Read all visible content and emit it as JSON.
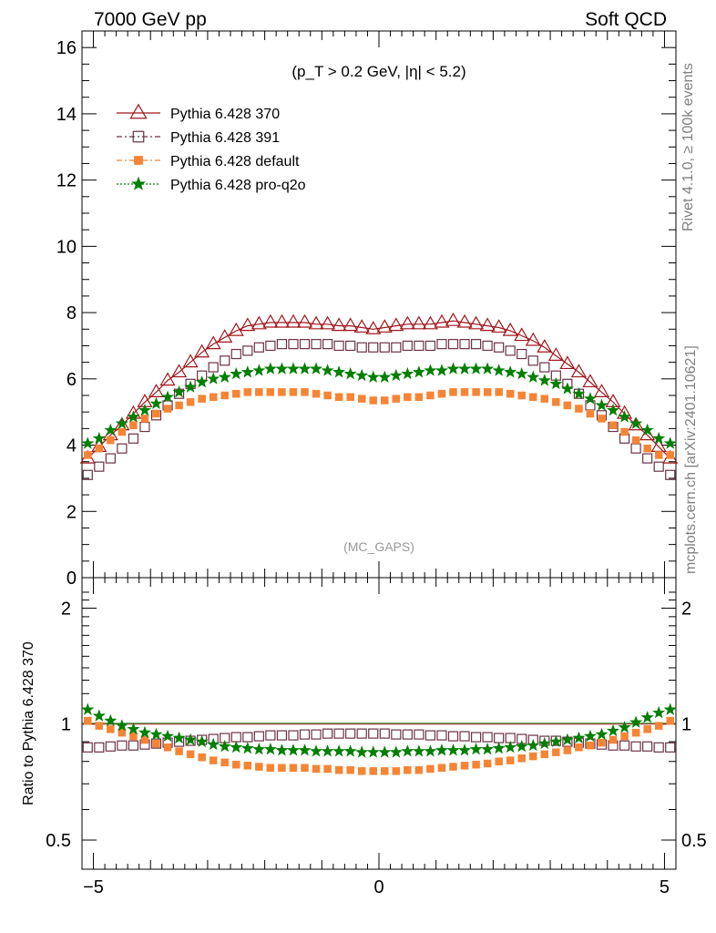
{
  "header": {
    "left_title": "7000 GeV pp",
    "right_title": "Soft QCD",
    "cut_text": "(p_T > 0.2 GeV, |η| < 5.2)",
    "analysis": "(MC_GAPS)"
  },
  "side_text": {
    "rivet": "Rivet 4.1.0, ≥ 100k events",
    "mcplots": "mcplots.cern.ch [arXiv:2401.10621]"
  },
  "colors": {
    "p370": "#a0161c",
    "p391": "#6b3247",
    "default": "#f58535",
    "proq2o": "#007f00"
  },
  "chart_data": [
    {
      "type": "scatter",
      "panel": "main",
      "title": "",
      "xlabel": "",
      "ylabel": "",
      "xlim": [
        -5.2,
        5.2
      ],
      "ylim": [
        0,
        16.5
      ],
      "yticks": [
        0,
        2,
        4,
        6,
        8,
        10,
        12,
        14,
        16
      ],
      "ytick_labels": [
        "0",
        "2",
        "4",
        "6",
        "8",
        "10",
        "12",
        "14",
        "16"
      ],
      "x": [
        -5.1,
        -4.9,
        -4.7,
        -4.5,
        -4.3,
        -4.1,
        -3.9,
        -3.7,
        -3.5,
        -3.3,
        -3.1,
        -2.9,
        -2.7,
        -2.5,
        -2.3,
        -2.1,
        -1.9,
        -1.7,
        -1.5,
        -1.3,
        -1.1,
        -0.9,
        -0.7,
        -0.5,
        -0.3,
        -0.1,
        0.1,
        0.3,
        0.5,
        0.7,
        0.9,
        1.1,
        1.3,
        1.5,
        1.7,
        1.9,
        2.1,
        2.3,
        2.5,
        2.7,
        2.9,
        3.1,
        3.3,
        3.5,
        3.7,
        3.9,
        4.1,
        4.3,
        4.5,
        4.7,
        4.9,
        5.1
      ],
      "series": [
        {
          "name": "Pythia 6.428 370",
          "key": "p370",
          "marker": "triangle",
          "values": [
            3.6,
            3.95,
            4.3,
            4.6,
            4.95,
            5.3,
            5.6,
            5.95,
            6.2,
            6.5,
            6.8,
            7.05,
            7.25,
            7.45,
            7.6,
            7.65,
            7.7,
            7.7,
            7.7,
            7.7,
            7.65,
            7.65,
            7.6,
            7.6,
            7.55,
            7.5,
            7.55,
            7.6,
            7.65,
            7.65,
            7.65,
            7.7,
            7.75,
            7.7,
            7.65,
            7.6,
            7.55,
            7.45,
            7.3,
            7.15,
            6.95,
            6.7,
            6.45,
            6.2,
            5.9,
            5.6,
            5.3,
            4.95,
            4.6,
            4.3,
            3.95,
            3.6
          ]
        },
        {
          "name": "Pythia 6.428 391",
          "key": "p391",
          "marker": "square",
          "values": [
            3.1,
            3.35,
            3.6,
            3.9,
            4.2,
            4.55,
            4.9,
            5.2,
            5.55,
            5.85,
            6.1,
            6.35,
            6.55,
            6.75,
            6.85,
            6.95,
            7.0,
            7.05,
            7.05,
            7.05,
            7.05,
            7.05,
            7.0,
            7.0,
            6.95,
            6.95,
            6.95,
            6.95,
            7.0,
            7.0,
            7.0,
            7.05,
            7.05,
            7.05,
            7.05,
            7.0,
            6.95,
            6.85,
            6.75,
            6.55,
            6.35,
            6.1,
            5.85,
            5.55,
            5.2,
            4.9,
            4.55,
            4.2,
            3.9,
            3.6,
            3.35,
            3.1
          ]
        },
        {
          "name": "Pythia 6.428 default",
          "key": "default",
          "marker": "fsquare",
          "values": [
            3.7,
            3.9,
            4.15,
            4.4,
            4.6,
            4.8,
            4.95,
            5.1,
            5.2,
            5.3,
            5.4,
            5.45,
            5.5,
            5.55,
            5.6,
            5.6,
            5.6,
            5.6,
            5.6,
            5.6,
            5.55,
            5.5,
            5.45,
            5.45,
            5.4,
            5.35,
            5.35,
            5.4,
            5.45,
            5.45,
            5.5,
            5.55,
            5.6,
            5.6,
            5.6,
            5.6,
            5.6,
            5.55,
            5.5,
            5.45,
            5.4,
            5.3,
            5.2,
            5.1,
            4.95,
            4.8,
            4.6,
            4.4,
            4.15,
            3.9,
            3.7,
            3.7
          ]
        },
        {
          "name": "Pythia 6.428 pro-q2o",
          "key": "proq2o",
          "marker": "star",
          "values": [
            4.05,
            4.2,
            4.45,
            4.65,
            4.85,
            5.05,
            5.25,
            5.45,
            5.6,
            5.75,
            5.9,
            6.0,
            6.05,
            6.15,
            6.2,
            6.25,
            6.3,
            6.3,
            6.3,
            6.3,
            6.3,
            6.25,
            6.2,
            6.15,
            6.1,
            6.05,
            6.05,
            6.1,
            6.15,
            6.2,
            6.25,
            6.25,
            6.3,
            6.3,
            6.3,
            6.3,
            6.25,
            6.2,
            6.15,
            6.05,
            5.95,
            5.85,
            5.7,
            5.55,
            5.4,
            5.2,
            5.05,
            4.85,
            4.65,
            4.45,
            4.2,
            4.05
          ]
        }
      ]
    },
    {
      "type": "scatter",
      "panel": "ratio",
      "title": "",
      "xlabel": "",
      "ylabel": "Ratio to Pythia 6.428 370",
      "xlim": [
        -5.2,
        5.2
      ],
      "ylim": [
        0.42,
        2.4
      ],
      "log_y": true,
      "yticks": [
        0.5,
        1,
        2
      ],
      "ytick_labels": [
        "0.5",
        "1",
        "2"
      ],
      "xticks": [
        -5,
        0,
        5
      ],
      "xtick_labels": [
        "−5",
        "0",
        "5"
      ],
      "reference": 1.0,
      "x": [
        -5.1,
        -4.9,
        -4.7,
        -4.5,
        -4.3,
        -4.1,
        -3.9,
        -3.7,
        -3.5,
        -3.3,
        -3.1,
        -2.9,
        -2.7,
        -2.5,
        -2.3,
        -2.1,
        -1.9,
        -1.7,
        -1.5,
        -1.3,
        -1.1,
        -0.9,
        -0.7,
        -0.5,
        -0.3,
        -0.1,
        0.1,
        0.3,
        0.5,
        0.7,
        0.9,
        1.1,
        1.3,
        1.5,
        1.7,
        1.9,
        2.1,
        2.3,
        2.5,
        2.7,
        2.9,
        3.1,
        3.3,
        3.5,
        3.7,
        3.9,
        4.1,
        4.3,
        4.5,
        4.7,
        4.9,
        5.1
      ],
      "series": [
        {
          "name": "Pythia 6.428 391",
          "key": "p391",
          "marker": "square",
          "values": [
            0.87,
            0.87,
            0.875,
            0.88,
            0.88,
            0.885,
            0.89,
            0.895,
            0.9,
            0.905,
            0.91,
            0.915,
            0.92,
            0.925,
            0.925,
            0.93,
            0.935,
            0.935,
            0.935,
            0.94,
            0.94,
            0.945,
            0.945,
            0.945,
            0.945,
            0.945,
            0.945,
            0.94,
            0.94,
            0.94,
            0.935,
            0.935,
            0.93,
            0.93,
            0.925,
            0.925,
            0.92,
            0.92,
            0.915,
            0.91,
            0.905,
            0.905,
            0.9,
            0.895,
            0.89,
            0.885,
            0.88,
            0.88,
            0.875,
            0.875,
            0.87,
            0.87
          ]
        },
        {
          "name": "Pythia 6.428 default",
          "key": "default",
          "marker": "fsquare",
          "values": [
            1.02,
            0.99,
            0.97,
            0.95,
            0.93,
            0.91,
            0.89,
            0.87,
            0.85,
            0.835,
            0.82,
            0.805,
            0.795,
            0.785,
            0.78,
            0.775,
            0.77,
            0.77,
            0.77,
            0.77,
            0.765,
            0.765,
            0.76,
            0.76,
            0.755,
            0.755,
            0.755,
            0.755,
            0.76,
            0.76,
            0.765,
            0.77,
            0.775,
            0.78,
            0.785,
            0.79,
            0.8,
            0.805,
            0.815,
            0.825,
            0.835,
            0.845,
            0.855,
            0.87,
            0.88,
            0.895,
            0.91,
            0.93,
            0.95,
            0.97,
            0.99,
            1.02
          ]
        },
        {
          "name": "Pythia 6.428 pro-q2o",
          "key": "proq2o",
          "marker": "star",
          "values": [
            1.09,
            1.05,
            1.02,
            0.99,
            0.97,
            0.95,
            0.94,
            0.93,
            0.92,
            0.91,
            0.9,
            0.885,
            0.875,
            0.87,
            0.865,
            0.86,
            0.86,
            0.855,
            0.855,
            0.855,
            0.85,
            0.85,
            0.85,
            0.85,
            0.845,
            0.845,
            0.845,
            0.845,
            0.85,
            0.85,
            0.85,
            0.855,
            0.855,
            0.855,
            0.86,
            0.86,
            0.865,
            0.87,
            0.875,
            0.88,
            0.89,
            0.9,
            0.91,
            0.92,
            0.93,
            0.94,
            0.96,
            0.98,
            1.01,
            1.04,
            1.07,
            1.09
          ]
        }
      ]
    }
  ]
}
